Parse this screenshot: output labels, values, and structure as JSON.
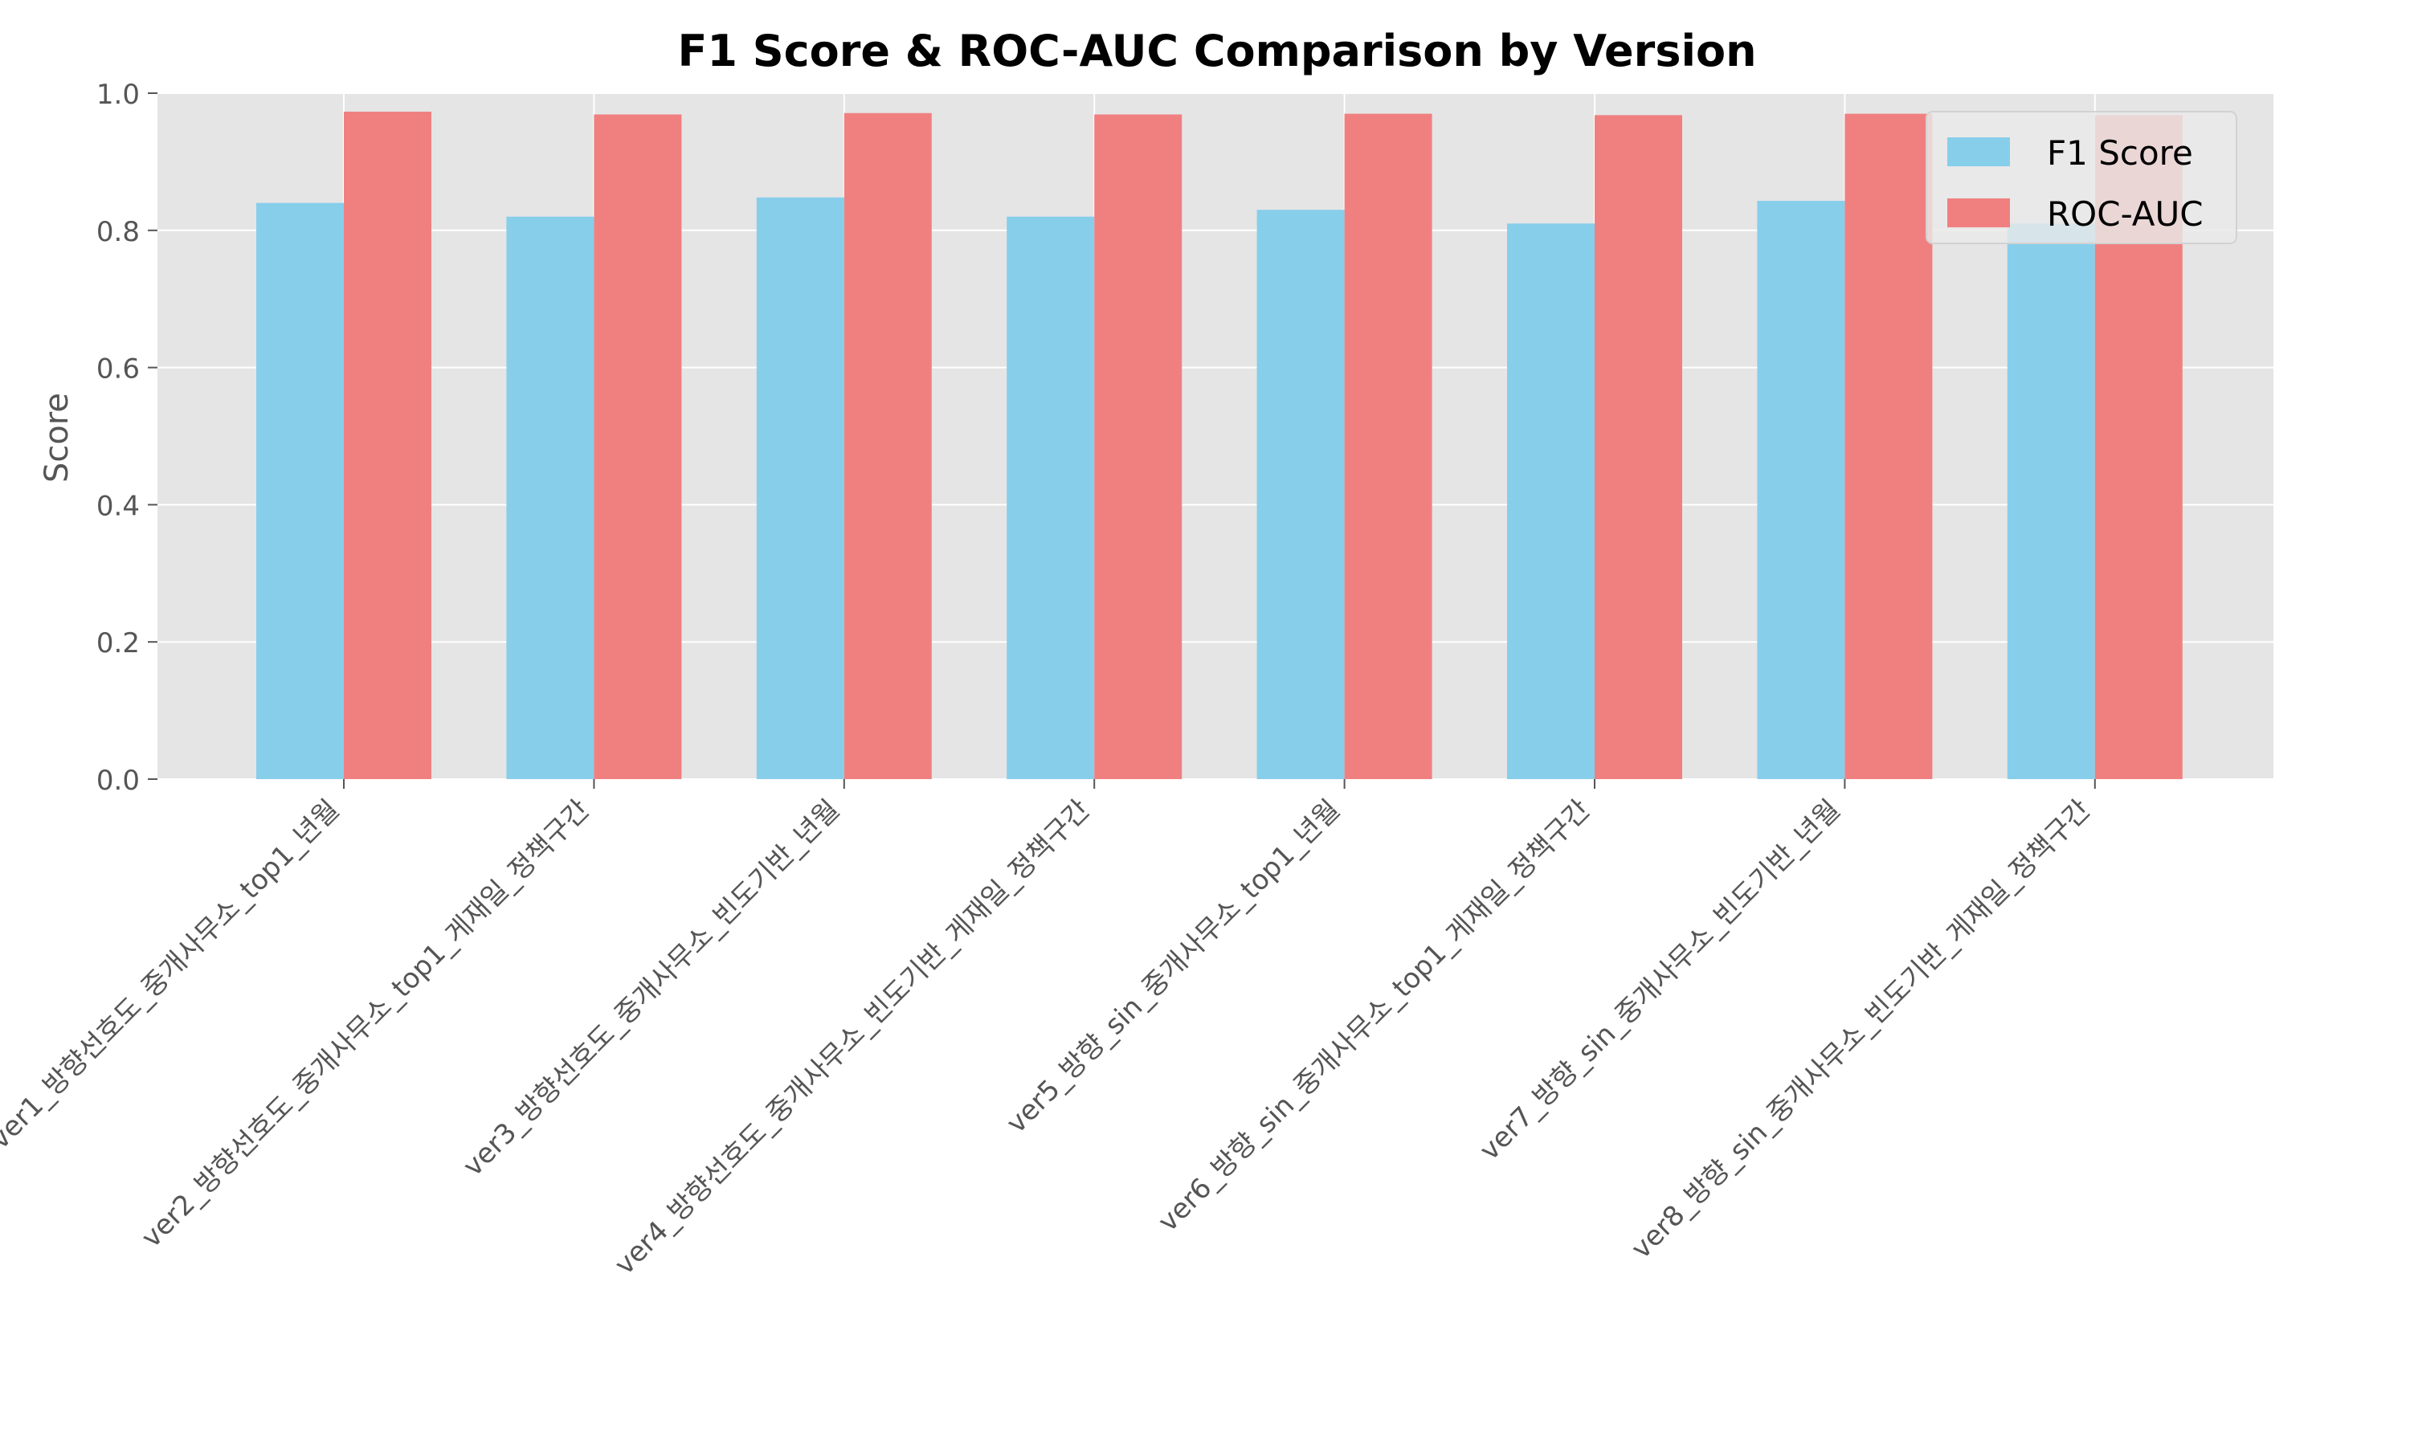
{
  "chart_data": {
    "type": "bar",
    "title": "F1 Score & ROC-AUC Comparison by Version",
    "xlabel": "",
    "ylabel": "Score",
    "ylim": [
      0,
      1.0
    ],
    "yticks": [
      "0.0",
      "0.2",
      "0.4",
      "0.6",
      "0.8",
      "1.0"
    ],
    "grid": true,
    "legend_position": "top-right",
    "categories": [
      "ver1_방향선호도_중개사무소_top1_년월",
      "ver2_방향선호도_중개사무소_top1_게재일_정책구간",
      "ver3_방향선호도_중개사무소_빈도기반_년월",
      "ver4_방향선호도_중개사무소_빈도기반_게재일_정책구간",
      "ver5_방향_sin_중개사무소_top1_년월",
      "ver6_방향_sin_중개사무소_top1_게재일_정책구간",
      "ver7_방향_sin_중개사무소_빈도기반_년월",
      "ver8_방향_sin_중개사무소_빈도기반_게재일_정책구간"
    ],
    "series": [
      {
        "name": "F1 Score",
        "color": "#87CEEB",
        "values": [
          0.84,
          0.82,
          0.848,
          0.82,
          0.83,
          0.81,
          0.843,
          0.81
        ]
      },
      {
        "name": "ROC-AUC",
        "color": "#F08080",
        "values": [
          0.973,
          0.969,
          0.971,
          0.969,
          0.97,
          0.968,
          0.97,
          0.968
        ]
      }
    ],
    "axes_background": "#E5E5E5",
    "grid_color": "#FFFFFF"
  }
}
